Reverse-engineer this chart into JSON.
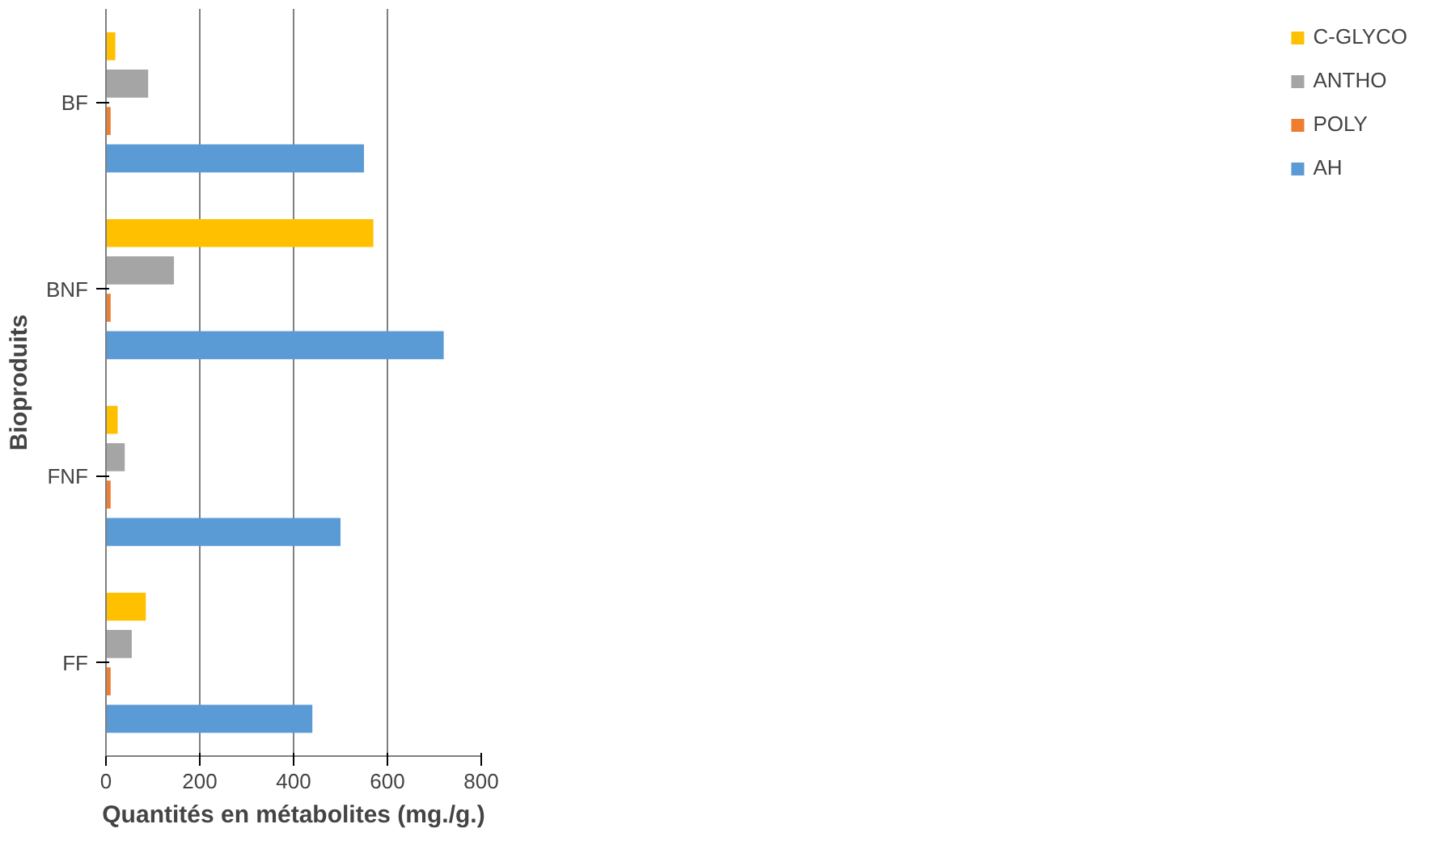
{
  "chart_data": {
    "type": "bar",
    "orientation": "horizontal",
    "xlabel": "Quantités en métabolites (mg./g.)",
    "ylabel": "Bioproduits",
    "categories": [
      "BF",
      "BNF",
      "FNF",
      "FF"
    ],
    "series": [
      {
        "name": "C-GLYCO",
        "color": "#ffc000",
        "values": [
          20,
          570,
          25,
          85
        ]
      },
      {
        "name": "ANTHO",
        "color": "#a5a5a5",
        "values": [
          90,
          145,
          40,
          55
        ]
      },
      {
        "name": "POLY",
        "color": "#ed7d31",
        "values": [
          10,
          10,
          10,
          10
        ]
      },
      {
        "name": "AH",
        "color": "#5b9bd5",
        "values": [
          550,
          720,
          500,
          440
        ]
      }
    ],
    "xlim": [
      0,
      800
    ],
    "xticks": [
      0,
      200,
      400,
      600,
      800
    ],
    "grid": "x",
    "legend": "right"
  }
}
